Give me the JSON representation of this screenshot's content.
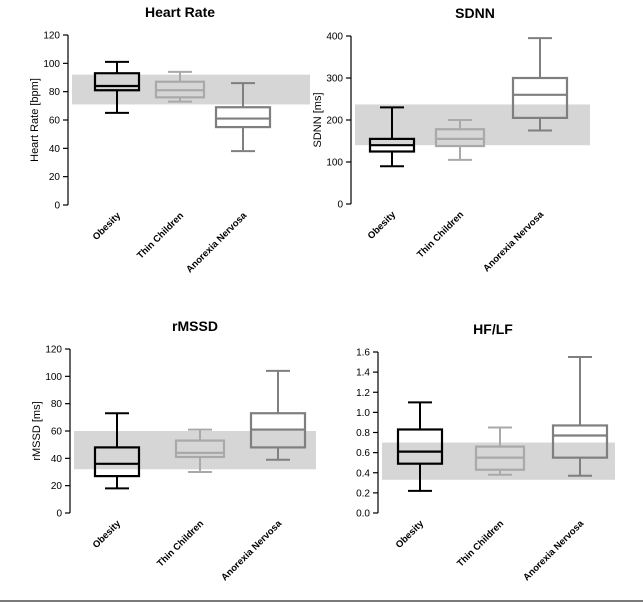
{
  "colors": {
    "reference_band": "#d6d6d6",
    "obesity": "#000000",
    "thin_children": "#a9a9a9",
    "anorexia_nervosa": "#7f7f7f",
    "axis": "#000000"
  },
  "chart_data": [
    {
      "type": "boxplot",
      "title": "Heart Rate",
      "ylabel": "Heart Rate [bpm]",
      "ylim": [
        0,
        120
      ],
      "yticks": [
        0,
        20,
        40,
        60,
        80,
        100,
        120
      ],
      "ytick_labels": [
        "0",
        "20",
        "40",
        "60",
        "80",
        "100",
        "120"
      ],
      "reference_band": [
        71,
        92
      ],
      "categories": [
        "Obesity",
        "Thin Children",
        "Anorexia Nervosa"
      ],
      "boxes": [
        {
          "min": 65,
          "q1": 81,
          "median": 84,
          "q3": 93,
          "max": 101
        },
        {
          "min": 73,
          "q1": 76,
          "median": 81,
          "q3": 87,
          "max": 94
        },
        {
          "min": 38,
          "q1": 55,
          "median": 61,
          "q3": 69,
          "max": 86
        }
      ]
    },
    {
      "type": "boxplot",
      "title": "SDNN",
      "ylabel": "SDNN [ms]",
      "ylim": [
        0,
        400
      ],
      "yticks": [
        0,
        100,
        200,
        300,
        400
      ],
      "ytick_labels": [
        "0",
        "100",
        "200",
        "300",
        "400"
      ],
      "reference_band": [
        140,
        237
      ],
      "categories": [
        "Obesity",
        "Thin Children",
        "Anorexia Nervosa"
      ],
      "boxes": [
        {
          "min": 90,
          "q1": 125,
          "median": 140,
          "q3": 155,
          "max": 230
        },
        {
          "min": 105,
          "q1": 138,
          "median": 155,
          "q3": 178,
          "max": 200
        },
        {
          "min": 175,
          "q1": 205,
          "median": 260,
          "q3": 300,
          "max": 395
        }
      ]
    },
    {
      "type": "boxplot",
      "title": "rMSSD",
      "ylabel": "rMSSD [ms]",
      "ylim": [
        0,
        120
      ],
      "yticks": [
        0,
        20,
        40,
        60,
        80,
        100,
        120
      ],
      "ytick_labels": [
        "0",
        "20",
        "40",
        "60",
        "80",
        "100",
        "120"
      ],
      "reference_band": [
        32,
        60
      ],
      "categories": [
        "Obesity",
        "Thin Children",
        "Anorexia Nervosa"
      ],
      "boxes": [
        {
          "min": 18,
          "q1": 27,
          "median": 36,
          "q3": 48,
          "max": 73
        },
        {
          "min": 30,
          "q1": 41,
          "median": 44,
          "q3": 53,
          "max": 61
        },
        {
          "min": 39,
          "q1": 48,
          "median": 61,
          "q3": 73,
          "max": 104
        }
      ]
    },
    {
      "type": "boxplot",
      "title": "HF/LF",
      "ylabel": "",
      "ylim": [
        0,
        1.6
      ],
      "yticks": [
        0,
        0.2,
        0.4,
        0.6,
        0.8,
        1.0,
        1.2,
        1.4,
        1.6
      ],
      "ytick_labels": [
        "0.0",
        "0.2",
        "0.4",
        "0.6",
        "0.8",
        "1.0",
        "1.2",
        "1.4",
        "1.6"
      ],
      "reference_band": [
        0.33,
        0.7
      ],
      "categories": [
        "Obesity",
        "Thin Children",
        "Anorexia Nervosa"
      ],
      "boxes": [
        {
          "min": 0.22,
          "q1": 0.49,
          "median": 0.61,
          "q3": 0.83,
          "max": 1.1
        },
        {
          "min": 0.38,
          "q1": 0.43,
          "median": 0.55,
          "q3": 0.66,
          "max": 0.85
        },
        {
          "min": 0.37,
          "q1": 0.55,
          "median": 0.77,
          "q3": 0.87,
          "max": 1.55
        }
      ]
    }
  ]
}
